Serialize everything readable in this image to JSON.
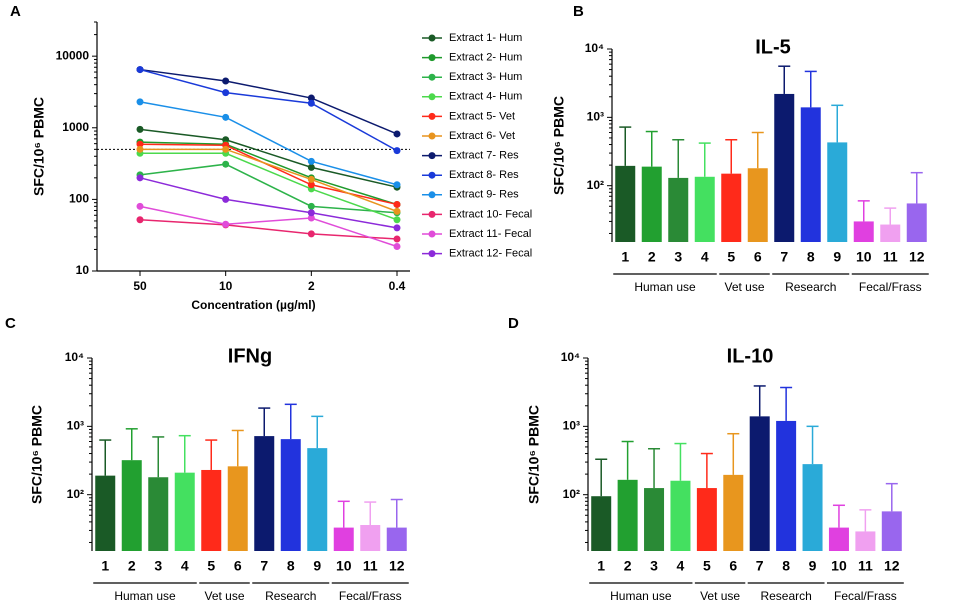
{
  "chart_data": [
    {
      "type": "line",
      "label": "A",
      "y_label": "SFC/10⁶ PBMC",
      "x_label": "Concentration (µg/ml)",
      "categories": [
        "50",
        "10",
        "2",
        "0.4"
      ],
      "log_y": true,
      "ylim": [
        10,
        30000
      ],
      "yticks": [
        10,
        100,
        1000,
        10000
      ],
      "threshold": 500,
      "series": [
        {
          "name": "Extract 1- Hum",
          "color": "#1a5a26",
          "values": [
            950,
            680,
            280,
            148
          ]
        },
        {
          "name": "Extract 2- Hum",
          "color": "#1f9a2c",
          "values": [
            630,
            590,
            200,
            85
          ]
        },
        {
          "name": "Extract 3- Hum",
          "color": "#2db34a",
          "values": [
            220,
            310,
            80,
            65
          ]
        },
        {
          "name": "Extract 4- Hum",
          "color": "#4cd94c",
          "values": [
            440,
            440,
            140,
            52
          ]
        },
        {
          "name": "Extract 5- Vet",
          "color": "#ff2a1a",
          "values": [
            590,
            570,
            160,
            85
          ]
        },
        {
          "name": "Extract 6- Vet",
          "color": "#e8941e",
          "values": [
            500,
            500,
            190,
            68
          ]
        },
        {
          "name": "Extract 7- Res",
          "color": "#0c1a6e",
          "values": [
            6500,
            4500,
            2600,
            820
          ]
        },
        {
          "name": "Extract 8- Res",
          "color": "#1a3ad9",
          "values": [
            6500,
            3100,
            2200,
            480
          ]
        },
        {
          "name": "Extract 9- Res",
          "color": "#1a8fe8",
          "values": [
            2300,
            1400,
            340,
            160
          ]
        },
        {
          "name": "Extract 10- Fecal",
          "color": "#e8266e",
          "values": [
            52,
            44,
            33,
            28
          ]
        },
        {
          "name": "Extract 11- Fecal",
          "color": "#e04cd9",
          "values": [
            80,
            45,
            55,
            22
          ]
        },
        {
          "name": "Extract 12- Fecal",
          "color": "#8c2ad9",
          "values": [
            200,
            100,
            65,
            40
          ]
        }
      ]
    },
    {
      "type": "bar",
      "label": "B",
      "title": "IL-5",
      "y_label": "SFC/10⁶ PBMC",
      "log_y": true,
      "categories": [
        "1",
        "2",
        "3",
        "4",
        "5",
        "6",
        "7",
        "8",
        "9",
        "10",
        "11",
        "12"
      ],
      "values": [
        195,
        190,
        130,
        135,
        150,
        180,
        2200,
        1400,
        430,
        30,
        27,
        55
      ],
      "errors": [
        525,
        430,
        340,
        285,
        320,
        420,
        3400,
        3300,
        1070,
        30,
        20,
        100
      ],
      "colors": [
        "#1a5a26",
        "#22a030",
        "#2a8a36",
        "#44e060",
        "#ff2a1a",
        "#e8961e",
        "#0c1a6e",
        "#2233dd",
        "#2aaad8",
        "#e040e0",
        "#f0a0f0",
        "#9966ee"
      ],
      "groups": [
        {
          "name": "Human use",
          "count": 4
        },
        {
          "name": "Vet use",
          "count": 2
        },
        {
          "name": "Research",
          "count": 3
        },
        {
          "name": "Fecal/Frass",
          "count": 3
        }
      ],
      "ylim": [
        15,
        10000
      ],
      "yticks": [
        {
          "value": 100,
          "label": "10²"
        },
        {
          "value": 1000,
          "label": "10³"
        },
        {
          "value": 10000,
          "label": "10⁴"
        }
      ]
    },
    {
      "type": "bar",
      "label": "C",
      "title": "IFNg",
      "y_label": "SFC/10⁶ PBMC",
      "log_y": true,
      "categories": [
        "1",
        "2",
        "3",
        "4",
        "5",
        "6",
        "7",
        "8",
        "9",
        "10",
        "11",
        "12"
      ],
      "values": [
        190,
        320,
        180,
        210,
        230,
        260,
        720,
        650,
        480,
        33,
        36,
        33
      ],
      "errors": [
        440,
        600,
        520,
        520,
        400,
        610,
        1130,
        1450,
        920,
        47,
        42,
        52
      ],
      "colors": [
        "#1a5a26",
        "#22a030",
        "#2a8a36",
        "#44e060",
        "#ff2a1a",
        "#e8961e",
        "#0c1a6e",
        "#2233dd",
        "#2aaad8",
        "#e040e0",
        "#f0a0f0",
        "#9966ee"
      ],
      "groups": [
        {
          "name": "Human use",
          "count": 4
        },
        {
          "name": "Vet use",
          "count": 2
        },
        {
          "name": "Research",
          "count": 3
        },
        {
          "name": "Fecal/Frass",
          "count": 3
        }
      ],
      "ylim": [
        15,
        10000
      ],
      "yticks": [
        {
          "value": 100,
          "label": "10²"
        },
        {
          "value": 1000,
          "label": "10³"
        },
        {
          "value": 10000,
          "label": "10⁴"
        }
      ]
    },
    {
      "type": "bar",
      "label": "D",
      "title": "IL-10",
      "y_label": "SFC/10⁶ PBMC",
      "log_y": true,
      "categories": [
        "1",
        "2",
        "3",
        "4",
        "5",
        "6",
        "7",
        "8",
        "9",
        "10",
        "11",
        "12"
      ],
      "values": [
        95,
        165,
        125,
        160,
        125,
        195,
        1400,
        1200,
        280,
        33,
        29,
        57
      ],
      "errors": [
        235,
        435,
        345,
        400,
        275,
        585,
        2500,
        2500,
        720,
        37,
        31,
        88
      ],
      "colors": [
        "#1a5a26",
        "#22a030",
        "#2a8a36",
        "#44e060",
        "#ff2a1a",
        "#e8961e",
        "#0c1a6e",
        "#2233dd",
        "#2aaad8",
        "#e040e0",
        "#f0a0f0",
        "#9966ee"
      ],
      "groups": [
        {
          "name": "Human use",
          "count": 4
        },
        {
          "name": "Vet use",
          "count": 2
        },
        {
          "name": "Research",
          "count": 3
        },
        {
          "name": "Fecal/Frass",
          "count": 3
        }
      ],
      "ylim": [
        15,
        10000
      ],
      "yticks": [
        {
          "value": 100,
          "label": "10²"
        },
        {
          "value": 1000,
          "label": "10³"
        },
        {
          "value": 10000,
          "label": "10⁴"
        }
      ]
    }
  ]
}
